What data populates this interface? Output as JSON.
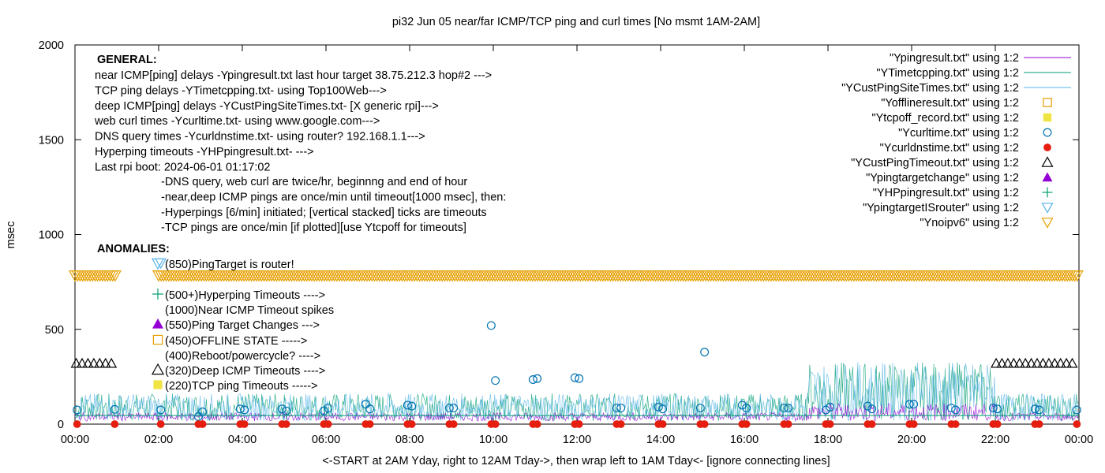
{
  "chart_data": {
    "type": "scatter",
    "title": "pi32 Jun 05  near/far ICMP/TCP ping and curl times [No msmt 1AM-2AM]",
    "xlabel": "<-START at 2AM Yday, right to 12AM Tday->, then wrap left to 1AM Tday<- [ignore connecting lines]",
    "ylabel": "msec",
    "xlim": [
      0,
      24
    ],
    "ylim": [
      0,
      2000
    ],
    "x_ticks": [
      "00:00",
      "02:00",
      "04:00",
      "06:00",
      "08:00",
      "10:00",
      "12:00",
      "14:00",
      "16:00",
      "18:00",
      "20:00",
      "22:00",
      "00:00"
    ],
    "y_ticks": [
      0,
      500,
      1000,
      1500,
      2000
    ],
    "legend_placement": "top-right",
    "legend": [
      {
        "label": "\"Ypingresult.txt\" using 1:2",
        "color": "#9400d3",
        "symbol": "line"
      },
      {
        "label": "\"YTimetcpping.txt\" using 1:2",
        "color": "#009e73",
        "symbol": "line"
      },
      {
        "label": "\"YCustPingSiteTimes.txt\" using 1:2",
        "color": "#56b4e9",
        "symbol": "line"
      },
      {
        "label": "\"Yofflineresult.txt\" using 1:2",
        "color": "#e69f00",
        "symbol": "open-square"
      },
      {
        "label": "\"Ytcpoff_record.txt\" using 1:2",
        "color": "#f0e442",
        "symbol": "filled-square"
      },
      {
        "label": "\"Ycurltime.txt\" using 1:2",
        "color": "#0072b2",
        "symbol": "open-circle"
      },
      {
        "label": "\"Ycurldnstime.txt\" using 1:2",
        "color": "#e51e10",
        "symbol": "filled-circle"
      },
      {
        "label": "\"YCustPingTimeout.txt\" using 1:2",
        "color": "#000000",
        "symbol": "open-triangle"
      },
      {
        "label": "\"Ypingtargetchange\" using 1:2",
        "color": "#9400d3",
        "symbol": "filled-triangle"
      },
      {
        "label": "\"YHPpingresult.txt\" using 1:2",
        "color": "#009e73",
        "symbol": "plus"
      },
      {
        "label": "\"YpingtargetISrouter\" using 1:2",
        "color": "#56b4e9",
        "symbol": "open-down-triangle"
      },
      {
        "label": "\"Ynoipv6\" using 1:2",
        "color": "#e69f00",
        "symbol": "open-down-triangle"
      }
    ],
    "annotations": {
      "general_heading": "GENERAL:",
      "general_lines": [
        "near ICMP[ping] delays -Ypingresult.txt last hour target 38.75.212.3 hop#2 --->",
        "TCP ping delays -YTimetcpping.txt- using Top100Web--->",
        "deep ICMP[ping] delays -YCustPingSiteTimes.txt- [X generic rpi]--->",
        "web curl times -Ycurltime.txt- using www.google.com--->",
        "DNS query times -Ycurldnstime.txt- using router? 192.168.1.1--->",
        "Hyperping timeouts -YHPpingresult.txt- --->",
        "Last rpi boot: 2024-06-01 01:17:02"
      ],
      "notes_lines": [
        "-DNS query, web curl are twice/hr, beginnng and end of hour",
        "-near,deep ICMP pings are once/min until timeout[1000 msec], then:",
        "  -Hyperpings [6/min] initiated; [vertical stacked] ticks are timeouts",
        "-TCP pings are once/min [if plotted][use Ytcpoff for timeouts]"
      ],
      "anomalies_heading": "ANOMALIES:",
      "anomalies": [
        {
          "label": "(850)PingTarget is router!",
          "symbol": "open-down-triangle",
          "color": "#56b4e9"
        },
        {
          "label": "(500+)Hyperping Timeouts ---->",
          "symbol": "plus",
          "color": "#009e73"
        },
        {
          "label": "(1000)Near ICMP Timeout spikes",
          "symbol": "none",
          "color": "#000000"
        },
        {
          "label": "(550)Ping Target Changes --->",
          "symbol": "filled-triangle",
          "color": "#9400d3"
        },
        {
          "label": "(450)OFFLINE STATE ----->",
          "symbol": "open-square",
          "color": "#e69f00"
        },
        {
          "label": "(400)Reboot/powercycle? ---->",
          "symbol": "none",
          "color": "#000000"
        },
        {
          "label": "(320)Deep ICMP Timeouts ---->",
          "symbol": "open-triangle",
          "color": "#000000"
        },
        {
          "label": "(220)TCP ping Timeouts ----->",
          "symbol": "filled-square",
          "color": "#f0e442"
        }
      ]
    },
    "series": [
      {
        "name": "\"Ycurltime.txt\" using 1:2",
        "symbol": "open-circle",
        "color": "#0072b2",
        "points": [
          [
            0.05,
            75
          ],
          [
            0.95,
            78
          ],
          [
            2.05,
            75
          ],
          [
            2.95,
            40
          ],
          [
            3.05,
            65
          ],
          [
            3.95,
            80
          ],
          [
            4.05,
            75
          ],
          [
            4.95,
            80
          ],
          [
            5.05,
            70
          ],
          [
            5.95,
            70
          ],
          [
            6.05,
            85
          ],
          [
            6.95,
            105
          ],
          [
            7.05,
            80
          ],
          [
            7.95,
            100
          ],
          [
            8.05,
            95
          ],
          [
            8.95,
            85
          ],
          [
            9.05,
            85
          ],
          [
            9.95,
            520
          ],
          [
            10.05,
            230
          ],
          [
            10.95,
            235
          ],
          [
            11.05,
            240
          ],
          [
            11.95,
            245
          ],
          [
            12.05,
            240
          ],
          [
            12.95,
            85
          ],
          [
            13.05,
            85
          ],
          [
            13.95,
            90
          ],
          [
            14.05,
            80
          ],
          [
            14.95,
            85
          ],
          [
            15.05,
            380
          ],
          [
            15.95,
            100
          ],
          [
            16.05,
            85
          ],
          [
            16.95,
            85
          ],
          [
            17.05,
            85
          ],
          [
            17.95,
            75
          ],
          [
            18.05,
            90
          ],
          [
            18.95,
            95
          ],
          [
            19.05,
            80
          ],
          [
            19.95,
            105
          ],
          [
            20.05,
            105
          ],
          [
            20.95,
            85
          ],
          [
            21.05,
            75
          ],
          [
            21.95,
            85
          ],
          [
            22.05,
            80
          ],
          [
            22.95,
            80
          ],
          [
            23.05,
            75
          ],
          [
            23.95,
            75
          ]
        ]
      },
      {
        "name": "\"Ycurldnstime.txt\" using 1:2",
        "symbol": "filled-circle",
        "color": "#e51e10",
        "x": [
          0.05,
          0.95,
          2.05,
          2.95,
          3.05,
          3.95,
          4.05,
          4.95,
          5.05,
          5.95,
          6.05,
          6.95,
          7.05,
          7.95,
          8.05,
          8.95,
          9.05,
          9.95,
          10.05,
          10.95,
          11.05,
          11.95,
          12.05,
          12.95,
          13.05,
          13.95,
          14.05,
          14.95,
          15.05,
          15.95,
          16.05,
          16.95,
          17.05,
          17.95,
          18.05,
          18.95,
          19.05,
          19.95,
          20.05,
          20.95,
          21.05,
          21.95,
          22.05,
          22.95,
          23.05,
          23.95
        ],
        "value": 0
      },
      {
        "name": "\"YCustPingTimeout.txt\" using 1:2",
        "symbol": "open-triangle",
        "color": "#000000",
        "x": [
          0.03,
          0.17,
          0.31,
          0.45,
          0.59,
          0.73,
          0.87,
          22.02,
          22.16,
          22.3,
          22.44,
          22.58,
          22.72,
          22.86,
          23.0,
          23.14,
          23.28,
          23.42,
          23.56,
          23.7,
          23.84
        ],
        "value": 320
      },
      {
        "name": "\"Ynoipv6\" using 1:2",
        "symbol": "open-down-triangle",
        "color": "#e69f00",
        "segments": [
          [
            0.0,
            1.0
          ],
          [
            2.0,
            24.0
          ]
        ],
        "value": 785
      },
      {
        "name": "\"YpingtargetISrouter\" using 1:2",
        "symbol": "open-down-triangle",
        "color": "#56b4e9",
        "points": [
          [
            2.05,
            850
          ]
        ]
      }
    ]
  }
}
